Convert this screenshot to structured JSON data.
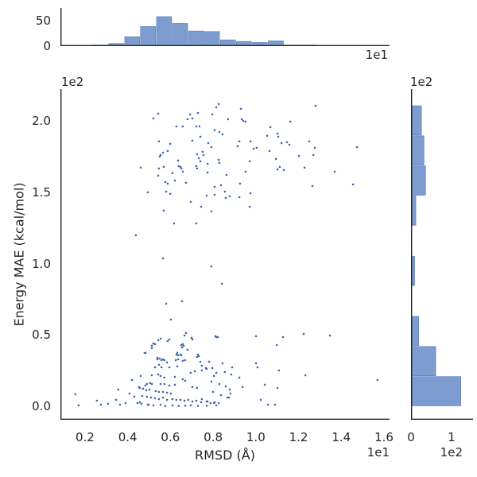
{
  "figure": {
    "background": "#ffffff"
  },
  "colors": {
    "scatter_dot": "#3f66ae",
    "hist_fill": "#7f9cd0",
    "hist_edge": "#6286c0",
    "spine": "#262626",
    "text": "#262626"
  },
  "chart_data": [
    {
      "type": "scatter",
      "title": "",
      "xlabel": "RMSD (Å)",
      "ylabel": "Energy MAE (kcal/mol)",
      "x_offset_label": "1e1",
      "y_offset_label": "1e2",
      "xlim": [
        0.85,
        16.26
      ],
      "ylim": [
        -9.5,
        222.4
      ],
      "grid": false,
      "legend": "none",
      "xticks": [
        {
          "v": 2,
          "label": "0.2"
        },
        {
          "v": 4,
          "label": "0.4"
        },
        {
          "v": 6,
          "label": "0.6"
        },
        {
          "v": 8,
          "label": "0.8"
        },
        {
          "v": 10,
          "label": "1.0"
        },
        {
          "v": 12,
          "label": "1.2"
        },
        {
          "v": 14,
          "label": "1.4"
        },
        {
          "v": 16,
          "label": "1.6"
        }
      ],
      "yticks": [
        {
          "v": 0,
          "label": "0.0"
        },
        {
          "v": 50,
          "label": "0.5"
        },
        {
          "v": 100,
          "label": "1.0"
        },
        {
          "v": 150,
          "label": "1.5"
        },
        {
          "v": 200,
          "label": "2.0"
        }
      ],
      "points": [
        [
          5.43,
          205.2
        ],
        [
          5.2,
          201.8
        ],
        [
          6.92,
          204.6
        ],
        [
          7.03,
          201.8
        ],
        [
          6.8,
          201.3
        ],
        [
          7.29,
          205.7
        ],
        [
          8.15,
          209.6
        ],
        [
          8.26,
          211.9
        ],
        [
          7.96,
          204.6
        ],
        [
          8.7,
          201.3
        ],
        [
          6.28,
          196.2
        ],
        [
          6.58,
          196.2
        ],
        [
          7.21,
          196.2
        ],
        [
          7.36,
          196.2
        ],
        [
          8.07,
          193.5
        ],
        [
          8.29,
          192.3
        ],
        [
          8.44,
          190.7
        ],
        [
          7.4,
          189.0
        ],
        [
          5.46,
          185.7
        ],
        [
          5.99,
          184.0
        ],
        [
          7.03,
          186.2
        ],
        [
          7.77,
          184.5
        ],
        [
          7.92,
          181.7
        ],
        [
          5.65,
          177.8
        ],
        [
          5.54,
          176.2
        ],
        [
          5.5,
          175.1
        ],
        [
          5.87,
          179.0
        ],
        [
          7.25,
          176.7
        ],
        [
          7.51,
          178.4
        ],
        [
          7.55,
          176.2
        ],
        [
          7.33,
          173.9
        ],
        [
          7.4,
          171.7
        ],
        [
          6.36,
          172.3
        ],
        [
          8.26,
          172.8
        ],
        [
          8.29,
          170.6
        ],
        [
          7.74,
          170.0
        ],
        [
          6.39,
          168.4
        ],
        [
          6.47,
          167.8
        ],
        [
          6.51,
          166.7
        ],
        [
          6.58,
          164.5
        ],
        [
          7.21,
          168.4
        ],
        [
          7.25,
          166.7
        ],
        [
          5.69,
          167.8
        ],
        [
          4.61,
          167.3
        ],
        [
          5.46,
          166.7
        ],
        [
          6.1,
          163.4
        ],
        [
          7.74,
          163.9
        ],
        [
          5.43,
          161.7
        ],
        [
          8.63,
          162.2
        ],
        [
          6.21,
          158.3
        ],
        [
          6.73,
          156.7
        ],
        [
          5.76,
          157.2
        ],
        [
          5.87,
          156.1
        ],
        [
          8.07,
          153.9
        ],
        [
          8.37,
          155.0
        ],
        [
          8.55,
          150.5
        ],
        [
          4.94,
          150.0
        ],
        [
          5.8,
          150.5
        ],
        [
          5.99,
          148.9
        ],
        [
          7.7,
          147.7
        ],
        [
          8.07,
          148.3
        ],
        [
          8.59,
          146.1
        ],
        [
          8.78,
          147.2
        ],
        [
          6.95,
          143.3
        ],
        [
          7.44,
          139.9
        ],
        [
          7.92,
          136.6
        ],
        [
          5.69,
          137.2
        ],
        [
          6.17,
          128.2
        ],
        [
          7.21,
          128.2
        ],
        [
          4.38,
          119.9
        ],
        [
          5.65,
          103.7
        ],
        [
          12.8,
          210.7
        ],
        [
          9.3,
          208.5
        ],
        [
          9.34,
          201.3
        ],
        [
          9.41,
          200.1
        ],
        [
          9.52,
          199.6
        ],
        [
          11.61,
          199.6
        ],
        [
          10.68,
          195.7
        ],
        [
          11.01,
          191.2
        ],
        [
          11.05,
          189.0
        ],
        [
          10.53,
          189.6
        ],
        [
          9.23,
          185.7
        ],
        [
          9.75,
          185.7
        ],
        [
          12.5,
          185.7
        ],
        [
          9.15,
          182.3
        ],
        [
          9.9,
          180.6
        ],
        [
          10.04,
          181.2
        ],
        [
          11.2,
          184.5
        ],
        [
          11.46,
          185.1
        ],
        [
          11.57,
          183.4
        ],
        [
          12.76,
          181.2
        ],
        [
          14.74,
          181.7
        ],
        [
          10.64,
          179.0
        ],
        [
          12.69,
          176.2
        ],
        [
          12.02,
          175.6
        ],
        [
          9.71,
          171.7
        ],
        [
          10.94,
          173.4
        ],
        [
          11.01,
          166.1
        ],
        [
          11.12,
          167.8
        ],
        [
          11.31,
          165.6
        ],
        [
          12.28,
          167.3
        ],
        [
          9.52,
          164.5
        ],
        [
          13.69,
          164.5
        ],
        [
          9.26,
          156.1
        ],
        [
          12.65,
          154.4
        ],
        [
          14.55,
          155.5
        ],
        [
          9.75,
          149.4
        ],
        [
          9.23,
          146.6
        ],
        [
          9.71,
          139.9
        ],
        [
          7.92,
          98.1
        ],
        [
          8.41,
          85.9
        ],
        [
          5.8,
          71.9
        ],
        [
          6.54,
          73.6
        ],
        [
          6.02,
          60.8
        ],
        [
          6.73,
          51.3
        ],
        [
          10.01,
          49.1
        ],
        [
          11.27,
          48.5
        ],
        [
          12.24,
          50.7
        ],
        [
          13.47,
          49.6
        ],
        [
          8.15,
          48.5
        ],
        [
          8.22,
          48.5
        ],
        [
          7.03,
          46.8
        ],
        [
          5.43,
          46.3
        ],
        [
          5.87,
          45.7
        ],
        [
          5.2,
          44.0
        ],
        [
          6.51,
          42.9
        ],
        [
          6.62,
          42.4
        ],
        [
          10.98,
          42.9
        ],
        [
          5.13,
          40.7
        ],
        [
          6.8,
          39.6
        ],
        [
          4.83,
          37.4
        ],
        [
          6.28,
          36.2
        ],
        [
          6.36,
          35.7
        ],
        [
          6.51,
          35.7
        ],
        [
          7.25,
          34.6
        ],
        [
          7.33,
          35.1
        ],
        [
          5.39,
          34.0
        ],
        [
          7.4,
          31.2
        ],
        [
          10.01,
          30.1
        ],
        [
          10.08,
          27.3
        ],
        [
          11.08,
          25.1
        ],
        [
          9.23,
          20.1
        ],
        [
          12.32,
          21.7
        ],
        [
          15.7,
          18.4
        ],
        [
          9.38,
          13.4
        ],
        [
          10.42,
          15.1
        ],
        [
          11.01,
          12.8
        ],
        [
          10.23,
          4.5
        ],
        [
          10.57,
          1.1
        ],
        [
          10.9,
          1.1
        ],
        [
          7.47,
          28.4
        ],
        [
          7.66,
          26.8
        ],
        [
          8.15,
          23.4
        ],
        [
          8.55,
          24.0
        ],
        [
          8.89,
          27.3
        ],
        [
          7.92,
          17.3
        ],
        [
          8.29,
          15.6
        ],
        [
          8.59,
          13.9
        ],
        [
          8.78,
          11.7
        ],
        [
          8.0,
          10.0
        ],
        [
          8.37,
          7.8
        ],
        [
          8.67,
          6.1
        ],
        [
          7.47,
          5.0
        ],
        [
          7.74,
          3.3
        ],
        [
          8.04,
          2.2
        ],
        [
          1.55,
          8.4
        ],
        [
          1.7,
          0.6
        ],
        [
          2.56,
          3.9
        ],
        [
          2.74,
          1.1
        ],
        [
          3.08,
          1.7
        ],
        [
          3.45,
          4.5
        ],
        [
          3.64,
          1.1
        ],
        [
          3.9,
          2.2
        ],
        [
          4.09,
          8.9
        ],
        [
          3.56,
          11.7
        ],
        [
          4.31,
          6.7
        ],
        [
          4.57,
          2.8
        ],
        [
          4.94,
          1.1
        ],
        [
          5.13,
          15.6
        ],
        [
          4.83,
          14.5
        ],
        [
          4.2,
          18.4
        ],
        [
          4.53,
          13.4
        ],
        [
          6.66,
          49.6
        ],
        [
          8.11,
          49.1
        ],
        [
          5.54,
          47.4
        ],
        [
          5.95,
          46.8
        ],
        [
          6.99,
          48.0
        ],
        [
          5.13,
          42.4
        ],
        [
          5.28,
          43.5
        ],
        [
          6.58,
          43.5
        ],
        [
          6.54,
          41.3
        ],
        [
          4.79,
          37.4
        ],
        [
          6.32,
          37.4
        ],
        [
          6.47,
          36.2
        ],
        [
          7.29,
          36.2
        ],
        [
          5.39,
          32.9
        ],
        [
          5.5,
          33.5
        ],
        [
          5.58,
          32.3
        ],
        [
          5.65,
          32.9
        ],
        [
          5.72,
          32.3
        ],
        [
          5.84,
          30.7
        ],
        [
          6.25,
          32.3
        ],
        [
          6.36,
          32.9
        ],
        [
          6.58,
          31.8
        ],
        [
          6.69,
          32.3
        ],
        [
          7.81,
          31.2
        ],
        [
          8.44,
          30.1
        ],
        [
          5.28,
          27.3
        ],
        [
          5.46,
          29.0
        ],
        [
          5.58,
          27.3
        ],
        [
          5.95,
          27.3
        ],
        [
          6.32,
          27.9
        ],
        [
          6.95,
          23.4
        ],
        [
          7.14,
          24.5
        ],
        [
          7.47,
          25.1
        ],
        [
          7.7,
          26.2
        ],
        [
          7.96,
          26.8
        ],
        [
          8.04,
          21.2
        ],
        [
          8.85,
          22.3
        ],
        [
          4.61,
          21.2
        ],
        [
          5.13,
          21.7
        ],
        [
          5.43,
          22.3
        ],
        [
          5.54,
          21.2
        ],
        [
          5.72,
          20.1
        ],
        [
          6.21,
          20.6
        ],
        [
          6.58,
          19.0
        ],
        [
          6.69,
          17.8
        ],
        [
          4.9,
          15.6
        ],
        [
          5.05,
          16.2
        ],
        [
          5.54,
          15.6
        ],
        [
          5.72,
          15.6
        ],
        [
          5.95,
          14.5
        ],
        [
          6.21,
          15.1
        ],
        [
          7.03,
          13.4
        ],
        [
          7.25,
          12.8
        ],
        [
          4.57,
          12.8
        ],
        [
          4.72,
          12.3
        ],
        [
          4.87,
          11.2
        ],
        [
          5.02,
          11.7
        ],
        [
          5.31,
          10.6
        ],
        [
          5.46,
          10.0
        ],
        [
          5.65,
          10.0
        ],
        [
          5.84,
          9.5
        ],
        [
          6.02,
          8.9
        ],
        [
          4.68,
          7.2
        ],
        [
          4.9,
          6.7
        ],
        [
          5.09,
          6.1
        ],
        [
          5.28,
          5.6
        ],
        [
          5.46,
          5.0
        ],
        [
          5.65,
          6.1
        ],
        [
          5.84,
          4.5
        ],
        [
          6.1,
          5.0
        ],
        [
          6.28,
          4.5
        ],
        [
          6.47,
          4.5
        ],
        [
          6.66,
          3.9
        ],
        [
          6.84,
          4.5
        ],
        [
          7.03,
          3.3
        ],
        [
          7.21,
          3.9
        ],
        [
          7.44,
          2.8
        ],
        [
          7.7,
          3.3
        ],
        [
          7.88,
          2.2
        ],
        [
          8.07,
          2.8
        ],
        [
          8.26,
          2.2
        ],
        [
          4.46,
          2.2
        ],
        [
          4.64,
          1.7
        ],
        [
          4.98,
          1.1
        ],
        [
          5.2,
          0.6
        ],
        [
          5.54,
          1.1
        ],
        [
          5.76,
          0.2
        ],
        [
          6.1,
          0.6
        ],
        [
          6.39,
          0.2
        ],
        [
          6.69,
          0.3
        ],
        [
          6.95,
          0.6
        ],
        [
          7.29,
          0.2
        ],
        [
          7.7,
          0.3
        ],
        [
          8.15,
          0.6
        ],
        [
          8.74,
          6.1
        ],
        [
          8.81,
          8.9
        ]
      ]
    },
    {
      "type": "bar",
      "role": "top-marginal-histogram",
      "x_offset_label": "1e1",
      "xlim": [
        0.85,
        16.26
      ],
      "ylim": [
        0,
        74
      ],
      "bin_edges": [
        2.34,
        3.09,
        3.84,
        4.58,
        5.33,
        6.08,
        6.83,
        7.57,
        8.32,
        9.07,
        9.82,
        10.56,
        11.31,
        12.06,
        12.81
      ],
      "counts": [
        2,
        5,
        18,
        38,
        57,
        44,
        29,
        28,
        12,
        9,
        7,
        10,
        2,
        2
      ],
      "yticks": [
        {
          "v": 0,
          "label": "0"
        },
        {
          "v": 50,
          "label": "50"
        }
      ]
    },
    {
      "type": "bar",
      "role": "right-marginal-histogram",
      "x_offset_label": "1e2",
      "y_offset_label": "1e2",
      "xlim": [
        0,
        153
      ],
      "ylim": [
        -9.5,
        222.4
      ],
      "bin_edges": [
        0,
        21.1,
        42.2,
        63.3,
        84.4,
        105.5,
        126.6,
        147.7,
        168.8,
        189.9,
        211.0
      ],
      "counts": [
        120,
        58,
        16,
        0,
        6,
        0,
        9,
        33,
        29,
        23
      ],
      "xticks": [
        {
          "v": 0,
          "label": "0"
        },
        {
          "v": 100,
          "label": "1"
        }
      ]
    }
  ]
}
